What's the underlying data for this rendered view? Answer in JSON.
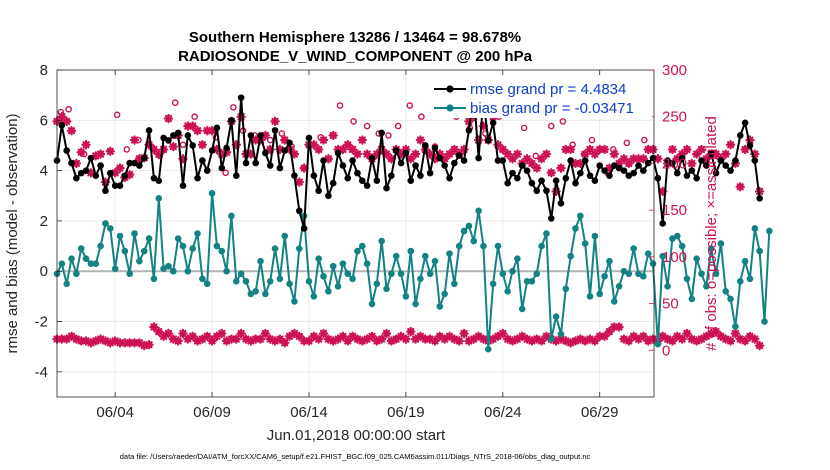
{
  "chart_data": {
    "type": "line",
    "title_line1": "Southern Hemisphere 13286 / 13464 = 98.678%",
    "title_line2": "RADIOSONDE_V_WIND_COMPONENT @ 200 hPa",
    "xlabel": "Jun.01,2018 00:00:00 start",
    "ylabel_left": "rmse and bias (model - observation)",
    "ylabel_right": "# of obs: o=possible; ×=assimilated",
    "xlim": [
      1,
      31.8
    ],
    "ylim_left": [
      -5,
      8
    ],
    "ylim_right": [
      -50,
      300
    ],
    "x_ticks": [
      4,
      9,
      14,
      19,
      24,
      29
    ],
    "x_tick_labels": [
      "06/04",
      "06/09",
      "06/14",
      "06/19",
      "06/24",
      "06/29"
    ],
    "y_left_ticks": [
      -4,
      -2,
      0,
      2,
      4,
      6,
      8
    ],
    "y_left_tick_labels": [
      "-4",
      "-2",
      "0",
      "2",
      "4",
      "6",
      "8"
    ],
    "y_right_ticks": [
      0,
      50,
      100,
      150,
      200,
      250,
      300
    ],
    "y_right_tick_labels": [
      "0",
      "50",
      "100",
      "150",
      "200",
      "250",
      "300"
    ],
    "zero_line": 0,
    "colors": {
      "rmse": "#000000",
      "bias": "#128282",
      "obs": "#cc1156",
      "zero": "#b4b4b4",
      "legend_text": "#0a3fc7"
    },
    "legend": [
      {
        "series": "rmse",
        "label": "rmse grand pr = 4.4834"
      },
      {
        "series": "bias",
        "label": "bias grand pr = -0.03471"
      }
    ],
    "x_start": 1.0,
    "x_step": 0.25,
    "series": [
      {
        "name": "rmse",
        "values": [
          4.4,
          5.8,
          4.8,
          4.3,
          3.7,
          3.9,
          4.0,
          4.5,
          3.8,
          4.2,
          3.2,
          3.9,
          3.4,
          3.4,
          3.8,
          4.3,
          4.3,
          4.2,
          4.5,
          5.6,
          3.7,
          3.6,
          5.3,
          5.2,
          5.4,
          5.5,
          3.4,
          5.4,
          5.0,
          3.7,
          4.4,
          4.0,
          4.8,
          5.7,
          4.1,
          4.9,
          6.0,
          3.8,
          6.9,
          4.3,
          5.4,
          4.3,
          5.4,
          4.7,
          4.2,
          5.6,
          4.1,
          4.8,
          5.1,
          3.8,
          2.4,
          1.7,
          5.3,
          3.8,
          3.2,
          4.4,
          3.0,
          3.5,
          4.7,
          4.2,
          3.7,
          4.4,
          3.9,
          3.6,
          3.4,
          4.5,
          3.6,
          5.5,
          3.3,
          3.8,
          4.8,
          4.3,
          4.7,
          3.6,
          4.2,
          3.8,
          5.0,
          3.9,
          4.9,
          4.5,
          4.2,
          3.7,
          4.3,
          4.6,
          4.4,
          5.6,
          7.1,
          4.5,
          6.8,
          5.2,
          5.9,
          4.4,
          4.4,
          3.5,
          3.9,
          3.7,
          4.2,
          4.0,
          3.5,
          3.2,
          3.6,
          3.2,
          2.1,
          3.6,
          2.7,
          3.7,
          4.4,
          3.5,
          3.9,
          4.4,
          3.8,
          3.6,
          4.2,
          4.0,
          3.8,
          4.2,
          4.1,
          4.0,
          3.8,
          3.9,
          4.2,
          4.0,
          4.3,
          4.5,
          3.7,
          1.9,
          4.4,
          4.3,
          3.9,
          4.5,
          3.8,
          4.0,
          3.7,
          4.4,
          4.2,
          4.7,
          3.9,
          4.4,
          4.2,
          4.0,
          4.4,
          5.4,
          5.9,
          5.0,
          4.4,
          2.9
        ]
      },
      {
        "name": "bias",
        "values": [
          -0.1,
          0.3,
          -0.5,
          0.5,
          -0.1,
          0.9,
          0.5,
          0.3,
          0.3,
          1.0,
          1.9,
          1.7,
          0.1,
          1.4,
          0.8,
          -0.1,
          1.5,
          0.4,
          0.8,
          1.3,
          -0.3,
          2.9,
          0.1,
          0.2,
          0.0,
          1.3,
          1.0,
          0.0,
          0.9,
          1.5,
          -0.3,
          -0.5,
          3.1,
          1.0,
          0.8,
          0.0,
          2.2,
          -0.4,
          -0.1,
          -0.4,
          -0.9,
          -0.8,
          0.4,
          -0.9,
          -0.4,
          0.9,
          -0.3,
          1.4,
          -0.5,
          -1.2,
          0.9,
          2.2,
          -0.4,
          -1.0,
          0.5,
          -0.2,
          -0.8,
          0.2,
          -0.6,
          0.3,
          -0.1,
          -0.3,
          0.8,
          1.0,
          0.3,
          -1.3,
          -0.5,
          1.2,
          -0.7,
          -0.1,
          0.6,
          -0.1,
          -1.0,
          0.8,
          -1.3,
          -0.3,
          0.6,
          -0.1,
          0.4,
          -1.4,
          -0.9,
          0.7,
          -0.5,
          1.0,
          1.6,
          1.8,
          1.2,
          2.4,
          1.0,
          -3.1,
          -0.5,
          1.0,
          -0.1,
          -0.8,
          0.0,
          0.5,
          -1.5,
          -0.4,
          -0.4,
          -0.1,
          1.0,
          1.5,
          -2.7,
          -1.8,
          -2.5,
          -0.7,
          0.6,
          1.7,
          2.2,
          1.1,
          -1.0,
          1.4,
          -0.9,
          -0.2,
          0.4,
          -1.2,
          -0.6,
          0.0,
          -0.1,
          0.9,
          -0.1,
          -0.2,
          0.7,
          0.3,
          -2.9,
          0.6,
          -0.6,
          1.3,
          1.4,
          1.0,
          -0.3,
          -1.1,
          0.5,
          -0.1,
          -0.6,
          0.9,
          -0.1,
          1.1,
          -0.8,
          -1.1,
          -2.2,
          -0.4,
          0.4,
          -0.3,
          1.7,
          0.8,
          -2.0,
          1.6
        ]
      },
      {
        "name": "obs_assimilated_top",
        "values": [
          245,
          250,
          245,
          235,
          200,
          212,
          220,
          190,
          208,
          210,
          180,
          213,
          190,
          195,
          185,
          188,
          225,
          205,
          206,
          220,
          215,
          210,
          215,
          248,
          218,
          230,
          205,
          240,
          240,
          235,
          220,
          235,
          235,
          215,
          210,
          212,
          245,
          220,
          250,
          210,
          210,
          225,
          225,
          230,
          215,
          245,
          215,
          225,
          215,
          210,
          180,
          195,
          220,
          220,
          215,
          225,
          205,
          230,
          215,
          215,
          220,
          215,
          210,
          225,
          210,
          205,
          210,
          215,
          210,
          205,
          215,
          210,
          215,
          205,
          210,
          225,
          215,
          210,
          205,
          210,
          205,
          210,
          215,
          210,
          215,
          245,
          250,
          225,
          240,
          225,
          250,
          220,
          215,
          210,
          205,
          210,
          200,
          205,
          200,
          195,
          205,
          210,
          190,
          170,
          195,
          215,
          215,
          200,
          200,
          210,
          215,
          210,
          215,
          215,
          195,
          210,
          200,
          205,
          200,
          205,
          205,
          205,
          215,
          215,
          205,
          170,
          200,
          215,
          205,
          210,
          215,
          200,
          210,
          215,
          205,
          210,
          210,
          205,
          210,
          220,
          200,
          175,
          215,
          225,
          210,
          170
        ]
      },
      {
        "name": "obs_assimilated_bottom",
        "values": [
          12,
          12,
          12,
          15,
          12,
          10,
          10,
          8,
          10,
          12,
          10,
          8,
          10,
          8,
          8,
          8,
          8,
          8,
          5,
          6,
          25,
          20,
          15,
          18,
          12,
          10,
          18,
          12,
          15,
          10,
          12,
          15,
          10,
          15,
          18,
          10,
          12,
          12,
          18,
          12,
          10,
          12,
          12,
          18,
          12,
          10,
          12,
          8,
          15,
          18,
          15,
          10,
          10,
          15,
          12,
          18,
          12,
          10,
          12,
          15,
          10,
          15,
          12,
          10,
          12,
          15,
          10,
          12,
          18,
          10,
          12,
          15,
          12,
          20,
          12,
          15,
          12,
          12,
          10,
          15,
          12,
          15,
          12,
          10,
          18,
          10,
          12,
          15,
          12,
          10,
          12,
          15,
          18,
          12,
          10,
          12,
          15,
          12,
          10,
          12,
          10,
          15,
          12,
          10,
          12,
          10,
          8,
          10,
          12,
          10,
          12,
          10,
          15,
          15,
          20,
          25,
          25,
          12,
          10,
          15,
          12,
          15,
          10,
          12,
          10,
          15,
          12,
          10,
          15,
          12,
          18,
          12,
          10,
          12,
          15,
          18,
          20,
          15,
          12,
          10,
          18,
          12,
          10,
          15,
          12,
          5
        ]
      },
      {
        "name": "obs_possible",
        "points": [
          [
            1.2,
            255
          ],
          [
            1.6,
            258
          ],
          [
            2.4,
            210
          ],
          [
            4.1,
            252
          ],
          [
            4.6,
            215
          ],
          [
            5.2,
            225
          ],
          [
            6.3,
            208
          ],
          [
            7.1,
            265
          ],
          [
            7.5,
            220
          ],
          [
            8.1,
            250
          ],
          [
            9.2,
            228
          ],
          [
            9.7,
            190
          ],
          [
            10.1,
            260
          ],
          [
            10.6,
            235
          ],
          [
            11.2,
            230
          ],
          [
            12.0,
            225
          ],
          [
            12.6,
            232
          ],
          [
            13.1,
            218
          ],
          [
            14.6,
            228
          ],
          [
            15.6,
            262
          ],
          [
            16.3,
            245
          ],
          [
            17.0,
            240
          ],
          [
            17.6,
            232
          ],
          [
            18.1,
            230
          ],
          [
            18.6,
            240
          ],
          [
            19.2,
            262
          ],
          [
            19.8,
            250
          ],
          [
            20.5,
            218
          ],
          [
            21.2,
            260
          ],
          [
            21.6,
            250
          ],
          [
            22.3,
            238
          ],
          [
            23.1,
            232
          ],
          [
            23.8,
            250
          ],
          [
            25.1,
            238
          ],
          [
            25.7,
            208
          ],
          [
            26.5,
            240
          ],
          [
            27.1,
            245
          ],
          [
            27.6,
            220
          ],
          [
            28.2,
            210
          ],
          [
            28.6,
            225
          ],
          [
            29.4,
            190
          ],
          [
            29.7,
            215
          ],
          [
            30.4,
            222
          ],
          [
            31.3,
            225
          ],
          [
            31.6,
            12
          ]
        ]
      }
    ]
  },
  "footer": "data file: /Users/raeder/DAI/ATM_forcXX/CAM6_setup/f.e21.FHIST_BGC.f09_025.CAM6assim.011/Diags_NTrS_2018-06/obs_diag_output.nc"
}
